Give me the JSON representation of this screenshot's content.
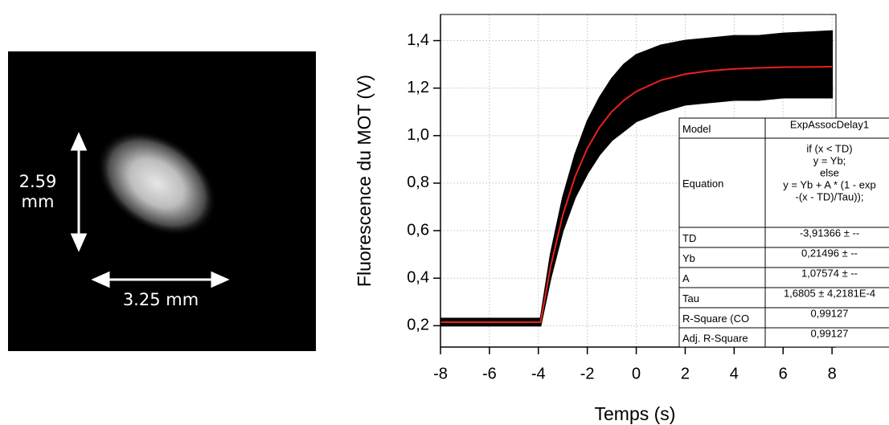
{
  "image": {
    "height_label": [
      "2.59",
      "mm"
    ],
    "width_label": "3.25 mm"
  },
  "chart_data": {
    "type": "line",
    "xlabel": "Temps (s)",
    "ylabel": "Fluorescence du MOT (V)",
    "x": [
      -8,
      -3.91,
      -3.5,
      -3,
      -2.5,
      -2,
      -1.5,
      -1,
      -0.5,
      0,
      1,
      2,
      3,
      4,
      5,
      6,
      8
    ],
    "series": [
      {
        "color": "#000000",
        "lower": [
          0.2,
          0.2,
          0.4,
          0.6,
          0.74,
          0.84,
          0.92,
          0.98,
          1.02,
          1.06,
          1.1,
          1.13,
          1.14,
          1.15,
          1.15,
          1.16,
          1.16
        ],
        "upper": [
          0.23,
          0.23,
          0.5,
          0.74,
          0.92,
          1.06,
          1.16,
          1.24,
          1.3,
          1.34,
          1.38,
          1.4,
          1.41,
          1.42,
          1.42,
          1.43,
          1.44
        ]
      },
      {
        "color": "#e8201c",
        "values": [
          0.215,
          0.215,
          0.449,
          0.667,
          0.827,
          0.946,
          1.035,
          1.101,
          1.149,
          1.186,
          1.233,
          1.259,
          1.273,
          1.281,
          1.285,
          1.288,
          1.29
        ]
      }
    ],
    "xlim": [
      -8,
      8.16
    ],
    "xticks": [
      -8,
      -6,
      -4,
      -2,
      0,
      2,
      4,
      6,
      8
    ],
    "ylim": [
      0.11,
      1.51
    ],
    "yticks": [
      {
        "value": 0.2,
        "label": "0,2"
      },
      {
        "value": 0.4,
        "label": "0,4"
      },
      {
        "value": 0.6,
        "label": "0,6"
      },
      {
        "value": 0.8,
        "label": "0,8"
      },
      {
        "value": 1.0,
        "label": "1,0"
      },
      {
        "value": 1.2,
        "label": "1,2"
      },
      {
        "value": 1.4,
        "label": "1,4"
      }
    ],
    "grid": true,
    "fit_table": {
      "rows": [
        [
          "Model",
          "ExpAssocDelay1"
        ],
        [
          "Equation",
          [
            "if (x < TD)",
            "y = Yb;",
            "else",
            "y = Yb + A * (1 - exp",
            "-(x - TD)/Tau));"
          ]
        ],
        [
          "TD",
          "-3,91366 ± --"
        ],
        [
          "Yb",
          "0,21496 ± --"
        ],
        [
          "A",
          "1,07574 ± --"
        ],
        [
          "Tau",
          "1,6805 ± 4,2181E-4"
        ],
        [
          "R-Square (CO",
          "0,99127"
        ],
        [
          "Adj. R-Square",
          "0,99127"
        ]
      ]
    }
  }
}
